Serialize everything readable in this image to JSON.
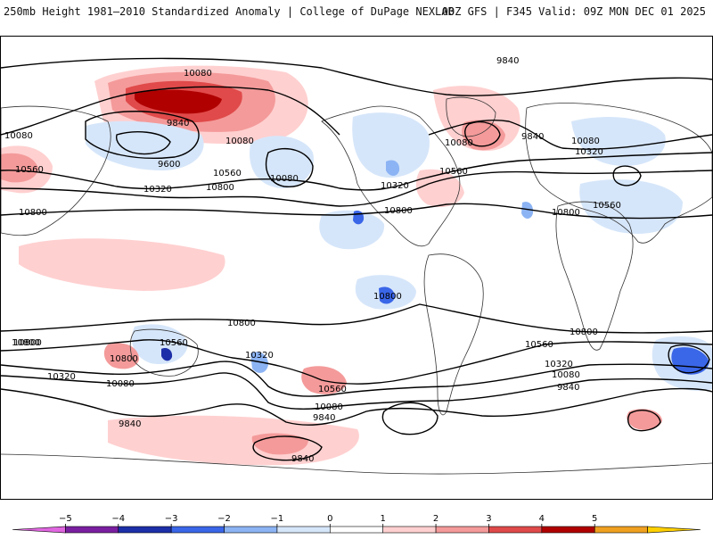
{
  "header": {
    "title_left": "250mb Height 1981–2010 Standardized Anomaly | College of DuPage NEXLAB",
    "title_right": "00Z GFS | F345 Valid: 09Z MON DEC 01 2025"
  },
  "contour_labels": [
    {
      "id": "n-10080-a",
      "text": "10080"
    },
    {
      "id": "n-9840-a",
      "text": "9840"
    },
    {
      "id": "n-9840-b",
      "text": "9840"
    },
    {
      "id": "n-10080-b",
      "text": "10080"
    },
    {
      "id": "n-9600",
      "text": "9600"
    },
    {
      "id": "n-10560-a",
      "text": "10560"
    },
    {
      "id": "n-10320-a",
      "text": "10320"
    },
    {
      "id": "n-10800-a",
      "text": "10800"
    },
    {
      "id": "n-10800-b",
      "text": "10800"
    },
    {
      "id": "n-10080-c",
      "text": "10080"
    },
    {
      "id": "n-10080-d",
      "text": "10080"
    },
    {
      "id": "n-10560-b",
      "text": "10560"
    },
    {
      "id": "n-10800-c",
      "text": "10800"
    },
    {
      "id": "n-10320-b",
      "text": "10320"
    },
    {
      "id": "n-10560-c",
      "text": "10560"
    },
    {
      "id": "n-10080-e",
      "text": "10080"
    },
    {
      "id": "n-9840-c",
      "text": "9840"
    },
    {
      "id": "n-10080-f",
      "text": "10080"
    },
    {
      "id": "n-10320-c",
      "text": "10320"
    },
    {
      "id": "n-10800-d",
      "text": "10800"
    },
    {
      "id": "n-10560-d",
      "text": "10560"
    },
    {
      "id": "n-10800-e",
      "text": "10800"
    },
    {
      "id": "n-10800-f",
      "text": "10800"
    },
    {
      "id": "n-10800-g",
      "text": "10800"
    },
    {
      "id": "s-10800-a",
      "text": "10800"
    },
    {
      "id": "s-10560-a",
      "text": "10560"
    },
    {
      "id": "s-10320-a",
      "text": "10320"
    },
    {
      "id": "s-10080-a",
      "text": "10080"
    },
    {
      "id": "s-10320-b",
      "text": "10320"
    },
    {
      "id": "s-10560-b",
      "text": "10560"
    },
    {
      "id": "s-10080-b",
      "text": "10080"
    },
    {
      "id": "s-9840-a",
      "text": "9840"
    },
    {
      "id": "s-9840-b",
      "text": "9840"
    },
    {
      "id": "s-10800-b",
      "text": "10800"
    },
    {
      "id": "s-10560-c",
      "text": "10560"
    },
    {
      "id": "s-10320-c",
      "text": "10320"
    },
    {
      "id": "s-10080-c",
      "text": "10080"
    },
    {
      "id": "s-9840-c",
      "text": "9840"
    },
    {
      "id": "s-9840-d",
      "text": "9840"
    },
    {
      "id": "s-10800-c",
      "text": "10800"
    }
  ],
  "colorbar": {
    "ticks": [
      "−5",
      "−4",
      "−3",
      "−2",
      "−1",
      "0",
      "1",
      "2",
      "3",
      "4",
      "5"
    ],
    "colors": [
      "#e066e0",
      "#7a1fa0",
      "#1d2fa8",
      "#3a66e8",
      "#8cb4f4",
      "#d6e6fa",
      "#ffffff",
      "#ffd0d0",
      "#f49a9a",
      "#e04a4a",
      "#b00000",
      "#f0a020",
      "#ffd000"
    ]
  }
}
